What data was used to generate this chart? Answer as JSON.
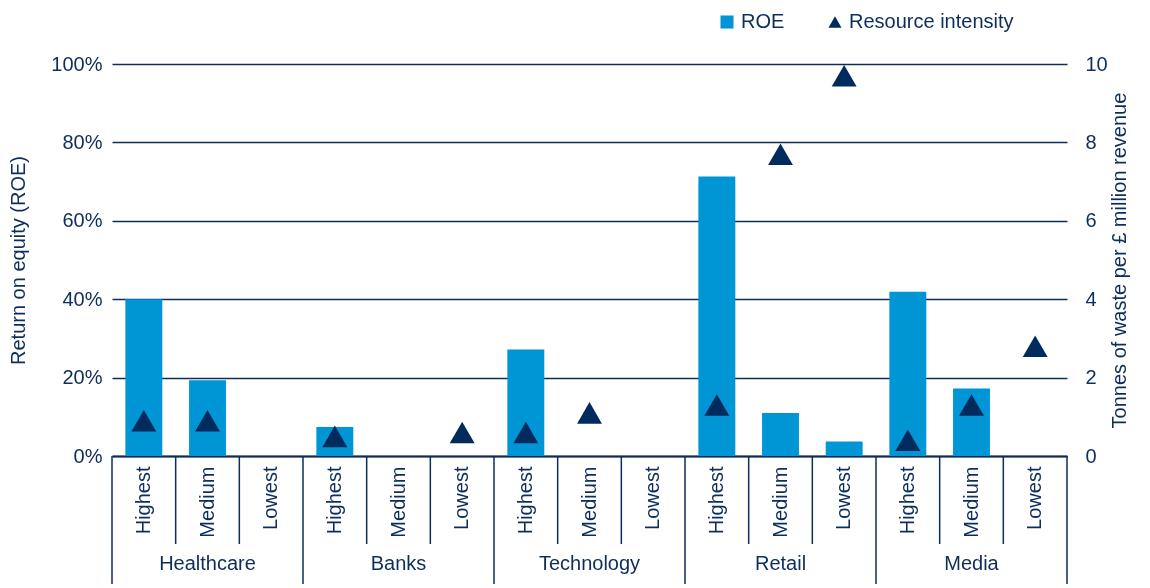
{
  "chart_data": {
    "type": "bar",
    "ylabel": "Return on equity (ROE)",
    "y2label": "Tonnes of waste per £ million revenue",
    "categories": [
      "Highest",
      "Medium",
      "Lowest",
      "Highest",
      "Medium",
      "Lowest",
      "Highest",
      "Medium",
      "Lowest",
      "Highest",
      "Medium",
      "Lowest",
      "Highest",
      "Medium",
      "Lowest"
    ],
    "series": [
      {
        "name": "ROE",
        "color": "#0096d6",
        "values": [
          40,
          19.3,
          null,
          7.4,
          null,
          null,
          27.2,
          null,
          null,
          71.3,
          11,
          3.7,
          41.9,
          17.2,
          null
        ]
      },
      {
        "name": "Resource intensity",
        "type": "scatter",
        "axis": "y2",
        "marker": "triangle",
        "color": "#002b5c",
        "values": [
          0.9,
          0.9,
          null,
          0.5,
          null,
          0.6,
          0.6,
          1.1,
          null,
          1.3,
          7.7,
          9.7,
          0.4,
          1.3,
          2.8
        ]
      }
    ],
    "ylim": [
      0,
      100
    ],
    "yticks": [
      {
        "value": 0,
        "label": "0%"
      },
      {
        "value": 20,
        "label": "20%"
      },
      {
        "value": 40,
        "label": "40%"
      },
      {
        "value": 60,
        "label": "60%"
      },
      {
        "value": 80,
        "label": "80%"
      },
      {
        "value": 100,
        "label": "100%"
      }
    ],
    "y2lim": [
      0,
      10
    ],
    "y2ticks": [
      0,
      2,
      4,
      6,
      8,
      10
    ],
    "grid": "y",
    "legend": "top right",
    "annotations": [
      "Healthcare",
      "Banks",
      "Technology",
      "Retail",
      "Media"
    ]
  }
}
